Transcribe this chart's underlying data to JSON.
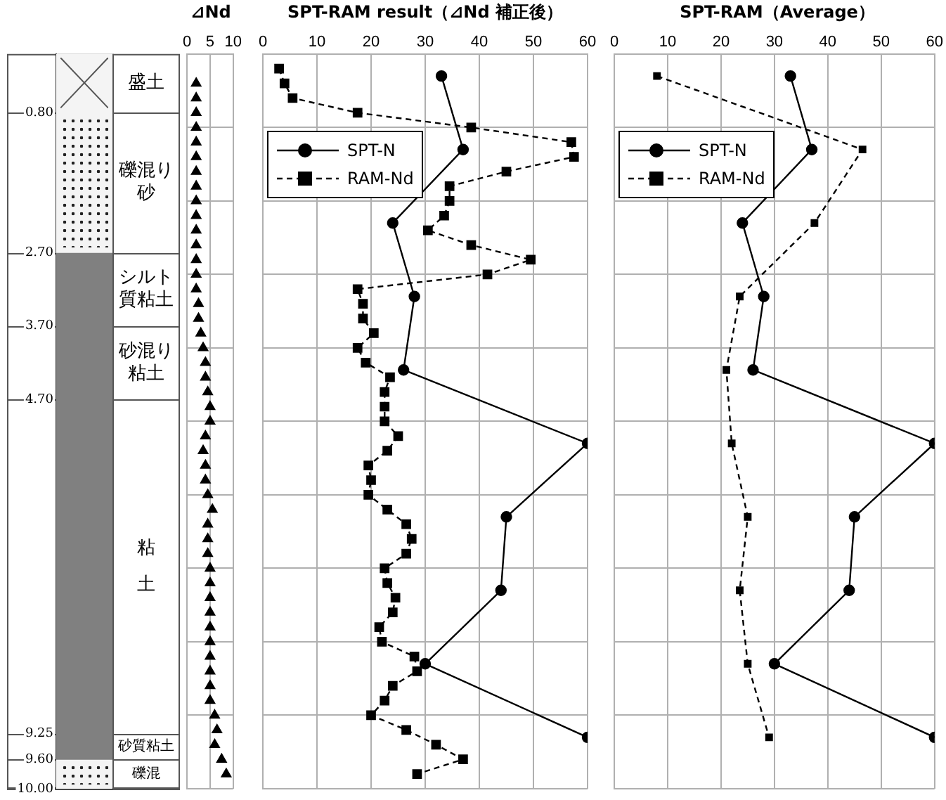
{
  "chart_data": [
    {
      "type": "bar",
      "stacked": true,
      "categories": [
        null
      ],
      "ylim": [
        10,
        0
      ],
      "grid": "y",
      "tick_labels": "y",
      "series": [
        {
          "name": "盛土",
          "color": "#f4f4f4",
          "values": [
            0.8
          ]
        },
        {
          "name": "礫混り砂",
          "color": "#f4f4f4",
          "values": [
            1.9
          ]
        },
        {
          "name": "シルト質粘土",
          "color": "#808080",
          "values": [
            1.0
          ]
        },
        {
          "name": "砂混り粘土",
          "color": "#808080",
          "values": [
            1.0
          ]
        },
        {
          "name": "粘土",
          "color": "#808080",
          "values": [
            4.55
          ]
        },
        {
          "name": "砂質粘土",
          "color": "#808080",
          "values": [
            0.35
          ]
        },
        {
          "name": "礫混",
          "color": "#f4f4f4",
          "values": [
            0.4
          ]
        }
      ],
      "yticks": [
        {
          "value": 0.8,
          "label": "0.80"
        },
        {
          "value": 2.7,
          "label": "2.70"
        },
        {
          "value": 3.7,
          "label": "3.70"
        },
        {
          "value": 4.7,
          "label": "4.70"
        },
        {
          "value": 9.25,
          "label": "9.25"
        },
        {
          "value": 9.6,
          "label": "9.60"
        },
        {
          "value": 10,
          "label": "10.00"
        }
      ]
    },
    {
      "type": "scatter",
      "title": "⊿Nd",
      "xlim": [
        0,
        10
      ],
      "xticks": [
        0,
        5,
        10
      ],
      "ylim": [
        10,
        0
      ],
      "yticks": [
        {
          "value": 0,
          "label": null
        },
        {
          "value": 1,
          "label": null
        },
        {
          "value": 2,
          "label": null
        },
        {
          "value": 3,
          "label": null
        },
        {
          "value": 4,
          "label": null
        },
        {
          "value": 5,
          "label": null
        },
        {
          "value": 6,
          "label": null
        },
        {
          "value": 7,
          "label": null
        },
        {
          "value": 8,
          "label": null
        },
        {
          "value": 9,
          "label": null
        },
        {
          "value": 10,
          "label": null
        }
      ],
      "grid": true,
      "tick_labels": "x",
      "marker": "triangle",
      "series": [
        {
          "color": "#000000",
          "x": [
            2,
            2,
            2,
            2,
            2,
            2,
            2,
            2,
            2,
            2,
            2,
            2,
            2,
            2,
            2,
            2.5,
            2.5,
            3,
            3.5,
            4,
            4,
            4.5,
            5,
            5,
            4,
            3.5,
            4,
            4,
            4.5,
            5.5,
            4.5,
            4.5,
            4.5,
            5,
            5,
            5,
            5,
            5,
            5,
            5,
            5,
            5,
            5,
            6,
            6.5,
            6,
            7.5,
            8.5
          ],
          "values": [
            0.4,
            0.6,
            0.8,
            1.0,
            1.2,
            1.4,
            1.6,
            1.8,
            2.0,
            2.2,
            2.4,
            2.6,
            2.8,
            3.0,
            3.2,
            3.4,
            3.6,
            3.8,
            4.0,
            4.2,
            4.4,
            4.6,
            4.8,
            5.0,
            5.2,
            5.4,
            5.6,
            5.8,
            6.0,
            6.2,
            6.4,
            6.6,
            6.8,
            7.0,
            7.2,
            7.4,
            7.6,
            7.8,
            8.0,
            8.2,
            8.4,
            8.6,
            8.8,
            9.0,
            9.2,
            9.4,
            9.6,
            9.8
          ]
        }
      ]
    },
    {
      "type": "line",
      "title": "SPT-RAM result（⊿Nd 補正後）",
      "xlim": [
        0,
        60
      ],
      "xticks": [
        0,
        10,
        20,
        30,
        40,
        50,
        60
      ],
      "ylim": [
        10,
        0
      ],
      "yticks": [
        {
          "value": 0,
          "label": null
        },
        {
          "value": 1,
          "label": null
        },
        {
          "value": 2,
          "label": null
        },
        {
          "value": 3,
          "label": null
        },
        {
          "value": 4,
          "label": null
        },
        {
          "value": 5,
          "label": null
        },
        {
          "value": 6,
          "label": null
        },
        {
          "value": 7,
          "label": null
        },
        {
          "value": 8,
          "label": null
        },
        {
          "value": 9,
          "label": null
        },
        {
          "value": 10,
          "label": null
        }
      ],
      "grid": true,
      "tick_labels": "x",
      "legend": "top left",
      "series": [
        {
          "name": "SPT-N",
          "color": "#000000",
          "marker": "circle",
          "line_style": "solid",
          "x": [
            33,
            37,
            24,
            28,
            26,
            60,
            45,
            44,
            30,
            60
          ],
          "values": [
            0.3,
            1.3,
            2.3,
            3.3,
            4.3,
            5.3,
            6.3,
            7.3,
            8.3,
            9.3
          ]
        },
        {
          "name": "RAM-Nd",
          "color": "#000000",
          "marker": "square",
          "line_style": "dashed",
          "x": [
            3,
            4,
            5.5,
            17.5,
            38.5,
            57,
            57.5,
            45,
            34.5,
            34.5,
            33.5,
            30.5,
            38.5,
            49.5,
            41.5,
            17.5,
            18.5,
            18.5,
            20.5,
            17.5,
            19,
            23.5,
            22.5,
            22.5,
            22.5,
            25,
            23,
            19.5,
            20,
            19.5,
            23,
            26.5,
            27.5,
            26.5,
            22.5,
            23,
            24.5,
            24,
            21.5,
            22,
            28,
            28.5,
            24,
            22.5,
            20,
            26.5,
            32,
            37,
            28.5
          ],
          "values": [
            0.2,
            0.4,
            0.6,
            0.8,
            1.0,
            1.2,
            1.4,
            1.6,
            1.8,
            2.0,
            2.2,
            2.4,
            2.6,
            2.8,
            3.0,
            3.2,
            3.4,
            3.6,
            3.8,
            4.0,
            4.2,
            4.4,
            4.6,
            4.8,
            5.0,
            5.2,
            5.4,
            5.6,
            5.8,
            6.0,
            6.2,
            6.4,
            6.6,
            6.8,
            7.0,
            7.2,
            7.4,
            7.6,
            7.8,
            8.0,
            8.2,
            8.4,
            8.6,
            8.8,
            9.0,
            9.2,
            9.4,
            9.6,
            9.8
          ]
        }
      ]
    },
    {
      "type": "line",
      "title": "SPT-RAM（Average）",
      "xlim": [
        0,
        60
      ],
      "xticks": [
        0,
        10,
        20,
        30,
        40,
        50,
        60
      ],
      "ylim": [
        10,
        0
      ],
      "yticks": [
        {
          "value": 0,
          "label": null
        },
        {
          "value": 1,
          "label": null
        },
        {
          "value": 2,
          "label": null
        },
        {
          "value": 3,
          "label": null
        },
        {
          "value": 4,
          "label": null
        },
        {
          "value": 5,
          "label": null
        },
        {
          "value": 6,
          "label": null
        },
        {
          "value": 7,
          "label": null
        },
        {
          "value": 8,
          "label": null
        },
        {
          "value": 9,
          "label": null
        },
        {
          "value": 10,
          "label": null
        }
      ],
      "grid": true,
      "tick_labels": "x",
      "legend": "top left",
      "series": [
        {
          "name": "SPT-N",
          "color": "#000000",
          "marker": "circle",
          "line_style": "solid",
          "x": [
            33,
            37,
            24,
            28,
            26,
            60,
            45,
            44,
            30,
            60
          ],
          "values": [
            0.3,
            1.3,
            2.3,
            3.3,
            4.3,
            5.3,
            6.3,
            7.3,
            8.3,
            9.3
          ]
        },
        {
          "name": "RAM-Nd",
          "color": "#000000",
          "marker": "square",
          "line_style": "dashed",
          "x": [
            8,
            46.5,
            37.5,
            23.5,
            21,
            22,
            25,
            23.5,
            25,
            29
          ],
          "values": [
            0.3,
            1.3,
            2.3,
            3.3,
            4.3,
            5.3,
            6.3,
            7.3,
            8.3,
            9.3
          ]
        }
      ]
    }
  ]
}
